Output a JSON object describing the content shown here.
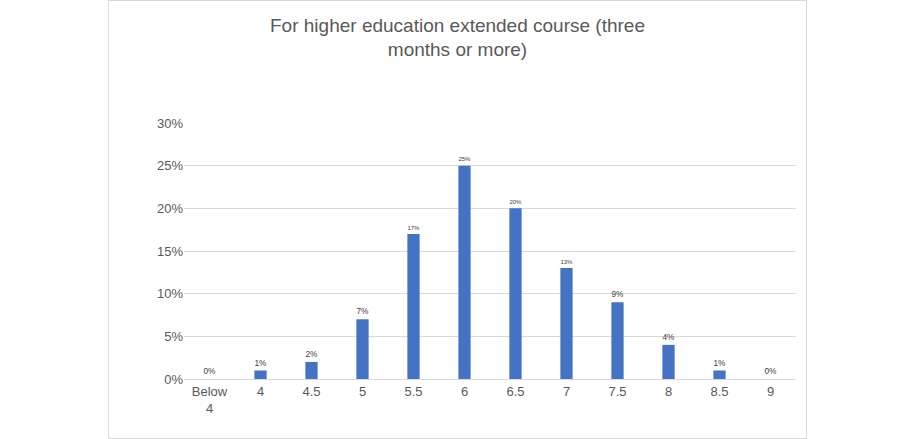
{
  "chart_data": {
    "type": "bar",
    "title": "For higher education extended course (three months or more)",
    "categories": [
      "Below 4",
      "4",
      "4.5",
      "5",
      "5.5",
      "6",
      "6.5",
      "7",
      "7.5",
      "8",
      "8.5",
      "9"
    ],
    "values": [
      0,
      1,
      2,
      7,
      17,
      25,
      20,
      13,
      9,
      4,
      1,
      0
    ],
    "value_labels": [
      "0%",
      "1%",
      "2%",
      "7%",
      "17%",
      "25%",
      "20%",
      "13%",
      "9%",
      "4%",
      "1%",
      "0%"
    ],
    "data_labels": true,
    "color": "#4472c4",
    "ylim": [
      0,
      30
    ],
    "yticks": [
      {
        "value": 0,
        "label": "0%"
      },
      {
        "value": 5,
        "label": "5%"
      },
      {
        "value": 10,
        "label": "10%"
      },
      {
        "value": 15,
        "label": "15%"
      },
      {
        "value": 20,
        "label": "20%"
      },
      {
        "value": 25,
        "label": "25%"
      },
      {
        "value": 30,
        "label": "30%"
      }
    ],
    "grid": true
  }
}
